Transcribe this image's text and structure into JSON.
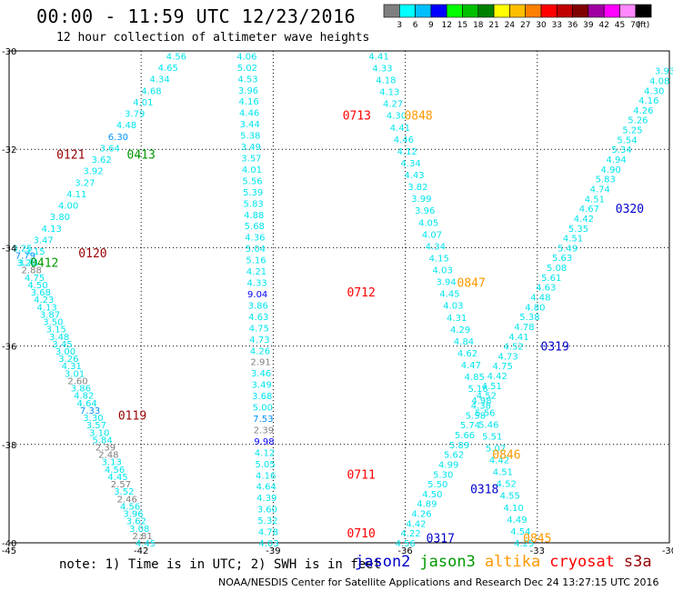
{
  "title": "00:00 - 11:59 UTC 12/23/2016",
  "subtitle": "12 hour collection of altimeter wave heights",
  "note": "note: 1) Time is in UTC; 2) SWH is in feet",
  "credit": "NOAA/NESDIS Center for Satellite Applications and Research",
  "timestamp": "Dec 24 13:27:15 UTC 2016",
  "colorbar": {
    "labels": [
      "3",
      "6",
      "9",
      "12",
      "15",
      "18",
      "21",
      "24",
      "27",
      "30",
      "33",
      "36",
      "39",
      "42",
      "45",
      "70",
      "(ft)"
    ],
    "colors": [
      "#7f7f7f",
      "#00ffff",
      "#00bfff",
      "#0000ff",
      "#00ff00",
      "#00c000",
      "#008000",
      "#ffff00",
      "#ffbf00",
      "#ff8000",
      "#ff0000",
      "#c00000",
      "#800000",
      "#a000a0",
      "#ff00ff",
      "#ff88ff",
      "#000000"
    ]
  },
  "satellites": [
    {
      "name": "jason2",
      "color": "#0000cc"
    },
    {
      "name": "jason3",
      "color": "#009900"
    },
    {
      "name": "altika",
      "color": "#ff9900"
    },
    {
      "name": "cryosat",
      "color": "#ff0000"
    },
    {
      "name": "s3a",
      "color": "#990000"
    }
  ],
  "chart_data": {
    "type": "scatter",
    "xlim": [
      -45,
      -30
    ],
    "ylim": [
      -40,
      -30
    ],
    "x_ticks": [
      "-45",
      "-42",
      "-39",
      "-36",
      "-33",
      "-30"
    ],
    "y_ticks": [
      "-30",
      "-32",
      "-34",
      "-36",
      "-38",
      "-40"
    ],
    "grid": true,
    "tracks": [
      {
        "id": "cryosat-0710",
        "sat": "cryosat",
        "color": "#ff0000",
        "lon_start": -39.1,
        "lat_start": -40.0,
        "lon_end": -39.6,
        "lat_end": -30.1,
        "times": [
          {
            "label": "0710",
            "lon": -37.0,
            "lat": -39.8
          },
          {
            "label": "0711",
            "lon": -37.0,
            "lat": -38.6
          },
          {
            "label": "0712",
            "lon": -37.0,
            "lat": -34.9
          },
          {
            "label": "0713",
            "lon": -37.1,
            "lat": -31.3
          }
        ],
        "values": [
          "4.03",
          "4.78",
          "5.32",
          "3.60",
          "4.39",
          "4.64",
          "4.16",
          "5.05",
          "4.12",
          "9.98",
          "2.39",
          "7.53",
          "5.00",
          "3.68",
          "3.49",
          "3.46",
          "2.91",
          "4.26",
          "4.73",
          "4.75",
          "4.63",
          "3.86",
          "9.04",
          "4.33",
          "4.21",
          "5.16",
          "5.04",
          "4.36",
          "5.68",
          "4.88",
          "5.83",
          "5.39",
          "5.56",
          "4.01",
          "3.57",
          "3.49",
          "5.38",
          "3.44",
          "4.46",
          "4.16",
          "3.96",
          "4.53",
          "5.02",
          "4.06"
        ]
      },
      {
        "id": "s3a-0119",
        "sat": "s3a",
        "color": "#990000",
        "lon_start": -41.9,
        "lat_start": -40.0,
        "lon_end": -44.7,
        "lat_end": -34.0,
        "times": [
          {
            "label": "0119",
            "lon": -42.2,
            "lat": -37.4
          },
          {
            "label": "0120",
            "lon": -43.1,
            "lat": -34.1
          }
        ],
        "values": [
          "4.45",
          "2.81",
          "3.08",
          "3.62",
          "3.96",
          "4.56",
          "2.46",
          "3.52",
          "2.57",
          "4.45",
          "4.56",
          "3.13",
          "2.48",
          "2.39",
          "5.84",
          "3.10",
          "3.57",
          "3.30",
          "7.33",
          "4.64",
          "4.82",
          "3.86",
          "2.60",
          "3.01",
          "4.31",
          "3.26",
          "3.00",
          "3.45",
          "3.48",
          "3.15",
          "3.50",
          "3.87",
          "4.13",
          "4.23",
          "3.68",
          "4.50",
          "4.75",
          "2.88",
          "3.74",
          "7.79",
          "3.25"
        ]
      },
      {
        "id": "jason3-0412",
        "sat": "jason3",
        "color": "#009900",
        "lon_start": -44.6,
        "lat_start": -34.3,
        "lon_end": -41.2,
        "lat_end": -30.1,
        "times": [
          {
            "label": "0412",
            "lon": -44.2,
            "lat": -34.3
          },
          {
            "label": "0413",
            "lon": -42.0,
            "lat": -32.1
          }
        ],
        "values": [
          "3.20",
          "3.15",
          "3.47",
          "4.13",
          "3.80",
          "4.00",
          "4.11",
          "3.27",
          "3.92",
          "3.62",
          "3.64",
          "6.30",
          "4.48",
          "3.79",
          "4.01",
          "4.68",
          "4.34",
          "4.65",
          "4.56"
        ]
      },
      {
        "id": "s3a-0121",
        "sat": "s3a",
        "color": "#990000",
        "lon_start": -43.6,
        "lat_start": -32.1,
        "lon_end": -43.6,
        "lat_end": -32.1,
        "times": [
          {
            "label": "0121",
            "lon": -43.6,
            "lat": -32.1
          }
        ],
        "values": []
      },
      {
        "id": "jason2-0317",
        "sat": "jason2",
        "color": "#0000cc",
        "lon_start": -36.0,
        "lat_start": -40.0,
        "lon_end": -30.1,
        "lat_end": -30.4,
        "times": [
          {
            "label": "0317",
            "lon": -35.2,
            "lat": -39.9
          },
          {
            "label": "0318",
            "lon": -34.2,
            "lat": -38.9
          },
          {
            "label": "0319",
            "lon": -32.6,
            "lat": -36.0
          },
          {
            "label": "0320",
            "lon": -30.9,
            "lat": -33.2
          }
        ],
        "values": [
          "4.56",
          "4.22",
          "4.42",
          "4.26",
          "4.89",
          "4.50",
          "5.50",
          "5.30",
          "4.99",
          "5.62",
          "5.89",
          "5.66",
          "5.74",
          "5.58",
          "4.38",
          "4.52",
          "4.51",
          "4.42",
          "4.75",
          "4.73",
          "4.52",
          "4.41",
          "4.78",
          "5.38",
          "4.80",
          "4.48",
          "4.63",
          "5.61",
          "5.08",
          "5.63",
          "5.49",
          "4.51",
          "5.35",
          "4.42",
          "4.67",
          "4.51",
          "4.74",
          "5.83",
          "4.90",
          "4.94",
          "5.34",
          "5.54",
          "5.25",
          "5.26",
          "4.26",
          "4.16",
          "4.30",
          "4.08",
          "3.93"
        ]
      },
      {
        "id": "altika-0845",
        "sat": "altika",
        "color": "#ff9900",
        "lon_start": -36.6,
        "lat_start": -30.1,
        "lon_end": -33.3,
        "lat_end": -40.0,
        "times": [
          {
            "label": "0848",
            "lon": -35.7,
            "lat": -31.3
          },
          {
            "label": "0847",
            "lon": -34.5,
            "lat": -34.7
          },
          {
            "label": "0846",
            "lon": -33.7,
            "lat": -38.2
          },
          {
            "label": "0845",
            "lon": -33.0,
            "lat": -39.9
          }
        ],
        "values": [
          "4.41",
          "4.33",
          "4.18",
          "4.13",
          "4.27",
          "4.30",
          "4.41",
          "4.46",
          "4.12",
          "4.34",
          "4.43",
          "3.82",
          "3.99",
          "3.96",
          "4.05",
          "4.07",
          "4.34",
          "4.15",
          "4.03",
          "3.94",
          "4.45",
          "4.03",
          "4.31",
          "4.29",
          "4.84",
          "4.62",
          "4.47",
          "4.85",
          "5.16",
          "4.98",
          "5.56",
          "5.46",
          "5.51",
          "5.07",
          "4.42",
          "4.51",
          "4.52",
          "4.55",
          "4.10",
          "4.49",
          "4.54",
          "4.25"
        ]
      }
    ]
  }
}
